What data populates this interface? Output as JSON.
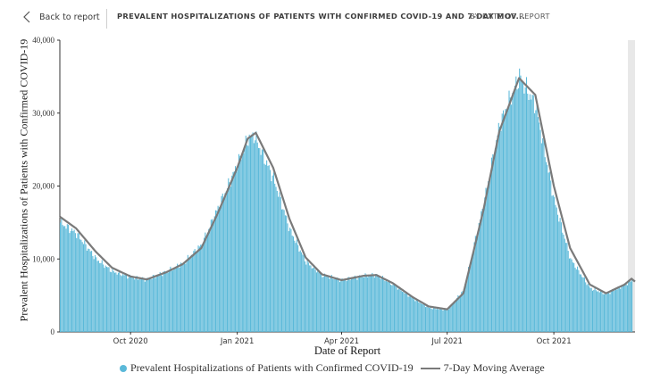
{
  "header": {
    "back_label": "Back to report",
    "title": "PREVALENT HOSPITALIZATIONS OF PATIENTS WITH CONFIRMED COVID-19 AND 7-DAY MOV...",
    "subtitle": "BY DATE OF REPORT"
  },
  "colors": {
    "bar": "#5bb9d9",
    "line": "#7a7a7a",
    "scrollbar": "#e8e8e8"
  },
  "icons": {
    "back": "chevron-left-icon"
  },
  "chart_data": {
    "type": "bar",
    "xlabel": "Date of Report",
    "ylabel": "Prevalent Hospitalizations of Patients with Confirmed COVID-19",
    "ylim": [
      0,
      40000
    ],
    "yticks": [
      "0",
      "10,000",
      "20,000",
      "30,000",
      "40,000"
    ],
    "yticks_values": [
      0,
      10000,
      20000,
      30000,
      40000
    ],
    "xticks": [
      "Oct 2020",
      "Jan 2021",
      "Apr 2021",
      "Jul 2021",
      "Oct 2021"
    ],
    "xticks_dates": [
      "2020-10-01",
      "2021-01-01",
      "2021-04-01",
      "2021-07-01",
      "2021-10-01"
    ],
    "x_range": [
      "2020-08-01",
      "2021-12-10"
    ],
    "grid": false,
    "legend_position": "bottom",
    "series": [
      {
        "name": "Prevalent Hospitalizations of Patients with Confirmed COVID-19",
        "render": "bar",
        "points": [
          [
            "2020-08-01",
            15000
          ],
          [
            "2020-08-15",
            13500
          ],
          [
            "2020-09-01",
            10000
          ],
          [
            "2020-09-15",
            8300
          ],
          [
            "2020-10-01",
            7500
          ],
          [
            "2020-10-15",
            7200
          ],
          [
            "2020-11-01",
            8300
          ],
          [
            "2020-11-15",
            9400
          ],
          [
            "2020-12-01",
            12000
          ],
          [
            "2020-12-15",
            17000
          ],
          [
            "2021-01-01",
            23000
          ],
          [
            "2021-01-10",
            26500
          ],
          [
            "2021-01-15",
            27000
          ],
          [
            "2021-02-01",
            21000
          ],
          [
            "2021-02-15",
            14000
          ],
          [
            "2021-03-01",
            9600
          ],
          [
            "2021-03-15",
            7800
          ],
          [
            "2021-04-01",
            7100
          ],
          [
            "2021-04-20",
            7700
          ],
          [
            "2021-05-01",
            7800
          ],
          [
            "2021-05-15",
            6500
          ],
          [
            "2021-06-01",
            4600
          ],
          [
            "2021-06-15",
            3300
          ],
          [
            "2021-07-01",
            3000
          ],
          [
            "2021-07-15",
            5800
          ],
          [
            "2021-08-01",
            17500
          ],
          [
            "2021-08-15",
            28500
          ],
          [
            "2021-09-01",
            35000
          ],
          [
            "2021-09-15",
            31000
          ],
          [
            "2021-10-01",
            18000
          ],
          [
            "2021-10-15",
            10000
          ],
          [
            "2021-11-01",
            6000
          ],
          [
            "2021-11-15",
            5200
          ],
          [
            "2021-12-01",
            6500
          ],
          [
            "2021-12-07",
            7100
          ]
        ]
      },
      {
        "name": "7-Day Moving Average",
        "render": "line",
        "points": [
          [
            "2020-08-01",
            15800
          ],
          [
            "2020-08-15",
            14200
          ],
          [
            "2020-09-01",
            11000
          ],
          [
            "2020-09-15",
            8800
          ],
          [
            "2020-10-01",
            7600
          ],
          [
            "2020-10-15",
            7200
          ],
          [
            "2020-11-01",
            8200
          ],
          [
            "2020-11-15",
            9300
          ],
          [
            "2020-12-01",
            11500
          ],
          [
            "2020-12-15",
            16200
          ],
          [
            "2021-01-01",
            22500
          ],
          [
            "2021-01-10",
            26500
          ],
          [
            "2021-01-17",
            27300
          ],
          [
            "2021-02-01",
            22500
          ],
          [
            "2021-02-15",
            15500
          ],
          [
            "2021-03-01",
            10200
          ],
          [
            "2021-03-15",
            7900
          ],
          [
            "2021-04-01",
            7100
          ],
          [
            "2021-04-20",
            7700
          ],
          [
            "2021-05-01",
            7800
          ],
          [
            "2021-05-15",
            6700
          ],
          [
            "2021-06-01",
            4800
          ],
          [
            "2021-06-15",
            3500
          ],
          [
            "2021-07-01",
            3100
          ],
          [
            "2021-07-15",
            5300
          ],
          [
            "2021-08-01",
            16500
          ],
          [
            "2021-08-15",
            27500
          ],
          [
            "2021-09-01",
            34800
          ],
          [
            "2021-09-15",
            32500
          ],
          [
            "2021-10-01",
            20000
          ],
          [
            "2021-10-15",
            11500
          ],
          [
            "2021-11-01",
            6500
          ],
          [
            "2021-11-15",
            5300
          ],
          [
            "2021-12-01",
            6500
          ],
          [
            "2021-12-07",
            7300
          ],
          [
            "2021-12-10",
            6900
          ]
        ]
      }
    ]
  }
}
